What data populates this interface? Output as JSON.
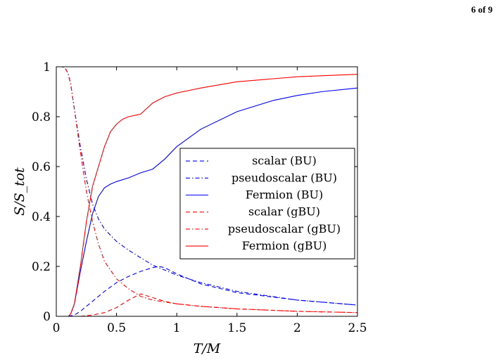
{
  "page": {
    "number_label": "6 of 9"
  },
  "chart_data": {
    "type": "line",
    "title": "",
    "xlabel": "T/M",
    "ylabel": "S/S_tot",
    "xlim": [
      0,
      2.5
    ],
    "ylim": [
      0,
      1
    ],
    "x_ticks": [
      0,
      0.5,
      1,
      1.5,
      2,
      2.5
    ],
    "x_tick_labels": [
      "0",
      "0.5",
      "1",
      "1.5",
      "2",
      "2.5"
    ],
    "y_ticks": [
      0,
      0.2,
      0.4,
      0.6,
      0.8,
      1
    ],
    "y_tick_labels": [
      "0",
      "0.2",
      "0.4",
      "0.6",
      "0.8",
      "1"
    ],
    "grid": false,
    "legend_position": "center-right",
    "series": [
      {
        "name": "scalar (BU)",
        "color": "#0000ff",
        "dash": "dashed",
        "x": [
          0.1,
          0.15,
          0.2,
          0.3,
          0.4,
          0.5,
          0.6,
          0.7,
          0.8,
          0.85,
          0.9,
          1.0,
          1.2,
          1.5,
          2.0,
          2.5
        ],
        "y": [
          0.0,
          0.005,
          0.02,
          0.06,
          0.1,
          0.135,
          0.16,
          0.18,
          0.195,
          0.2,
          0.195,
          0.17,
          0.13,
          0.095,
          0.065,
          0.045
        ]
      },
      {
        "name": "pseudoscalar (BU)",
        "color": "#0000ff",
        "dash": "dashdot",
        "x": [
          0.0,
          0.05,
          0.08,
          0.1,
          0.12,
          0.15,
          0.2,
          0.25,
          0.3,
          0.35,
          0.4,
          0.5,
          0.6,
          0.7,
          0.8,
          0.9,
          1.0,
          1.2,
          1.5,
          2.0,
          2.5
        ],
        "y": [
          1.0,
          1.0,
          0.99,
          0.97,
          0.93,
          0.83,
          0.68,
          0.55,
          0.45,
          0.39,
          0.35,
          0.3,
          0.265,
          0.235,
          0.205,
          0.185,
          0.165,
          0.135,
          0.1,
          0.065,
          0.045
        ]
      },
      {
        "name": "Fermion (BU)",
        "color": "#0000ff",
        "dash": "solid",
        "x": [
          0.0,
          0.1,
          0.12,
          0.15,
          0.2,
          0.25,
          0.3,
          0.35,
          0.4,
          0.45,
          0.5,
          0.6,
          0.7,
          0.8,
          0.9,
          1.0,
          1.2,
          1.5,
          1.8,
          2.0,
          2.2,
          2.5
        ],
        "y": [
          0.0,
          0.0,
          0.01,
          0.05,
          0.18,
          0.3,
          0.41,
          0.48,
          0.515,
          0.53,
          0.54,
          0.555,
          0.575,
          0.59,
          0.63,
          0.68,
          0.75,
          0.82,
          0.865,
          0.885,
          0.9,
          0.915
        ]
      },
      {
        "name": "scalar (gBU)",
        "color": "#ff0000",
        "dash": "dashed",
        "x": [
          0.2,
          0.3,
          0.4,
          0.5,
          0.6,
          0.7,
          0.8,
          0.9,
          1.0,
          1.2,
          1.5,
          2.0,
          2.5
        ],
        "y": [
          0.0,
          0.005,
          0.015,
          0.035,
          0.065,
          0.09,
          0.075,
          0.06,
          0.05,
          0.04,
          0.03,
          0.02,
          0.015
        ]
      },
      {
        "name": "pseudoscalar (gBU)",
        "color": "#ff0000",
        "dash": "dashdot",
        "x": [
          0.0,
          0.05,
          0.08,
          0.1,
          0.12,
          0.15,
          0.2,
          0.25,
          0.3,
          0.35,
          0.4,
          0.5,
          0.6,
          0.7,
          0.8,
          1.0,
          1.2,
          1.5,
          2.0,
          2.5
        ],
        "y": [
          1.0,
          1.0,
          0.99,
          0.97,
          0.93,
          0.83,
          0.66,
          0.5,
          0.38,
          0.29,
          0.22,
          0.15,
          0.11,
          0.08,
          0.065,
          0.05,
          0.04,
          0.03,
          0.02,
          0.015
        ]
      },
      {
        "name": "Fermion (gBU)",
        "color": "#ff0000",
        "dash": "solid",
        "x": [
          0.0,
          0.1,
          0.12,
          0.15,
          0.2,
          0.25,
          0.3,
          0.35,
          0.4,
          0.45,
          0.5,
          0.55,
          0.6,
          0.65,
          0.7,
          0.8,
          0.9,
          1.0,
          1.2,
          1.5,
          2.0,
          2.5
        ],
        "y": [
          0.0,
          0.0,
          0.01,
          0.05,
          0.2,
          0.38,
          0.52,
          0.6,
          0.68,
          0.74,
          0.77,
          0.79,
          0.8,
          0.805,
          0.81,
          0.855,
          0.88,
          0.895,
          0.915,
          0.94,
          0.96,
          0.97
        ]
      }
    ]
  }
}
